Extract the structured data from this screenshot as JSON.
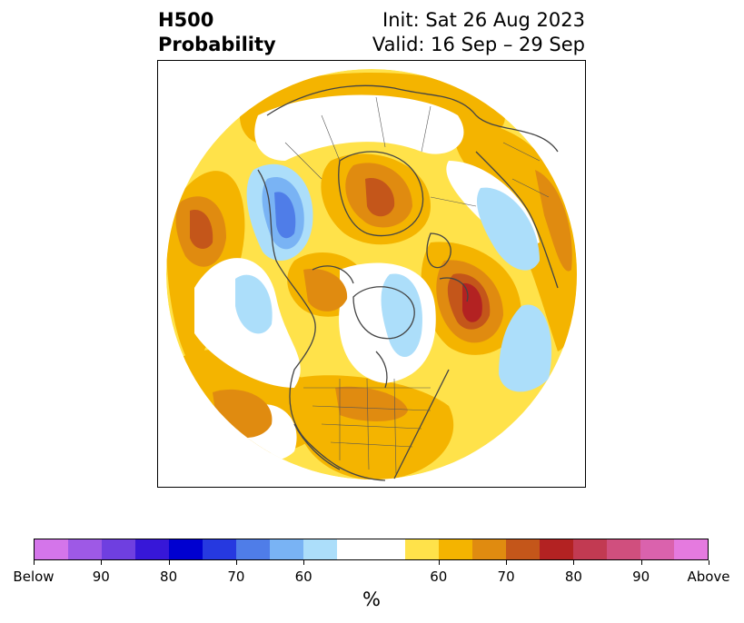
{
  "header": {
    "title_line1": "H500",
    "title_line2": "Probability",
    "init_line": "Init: Sat 26 Aug 2023",
    "valid_line": "Valid: 16 Sep – 29 Sep"
  },
  "colorbar": {
    "colors": [
      "#d475ea",
      "#9e59e6",
      "#6f3fe0",
      "#3717d8",
      "#0000d0",
      "#2639e0",
      "#4f7de8",
      "#79b3f4",
      "#acdefa",
      "#ffffff",
      "#ffe24a",
      "#f4b400",
      "#e08b10",
      "#c4561a",
      "#b32222",
      "#c23a52",
      "#d04f7e",
      "#da62ad",
      "#e57adf"
    ],
    "labels": [
      "Below",
      "90",
      "80",
      "70",
      "60",
      "60",
      "70",
      "80",
      "90",
      "Above"
    ],
    "unit": "%"
  },
  "map": {
    "projection": "north-polar-stereographic",
    "colors": {
      "ocean_bg": "#ffffff",
      "coast": "#444444",
      "p60_above": "#ffe24a",
      "p65_above": "#f4b400",
      "p70_above": "#e08b10",
      "p75_above": "#c4561a",
      "p80_above": "#b32222",
      "p60_below": "#acdefa",
      "p65_below": "#79b3f4",
      "p70_below": "#4f7de8"
    }
  }
}
